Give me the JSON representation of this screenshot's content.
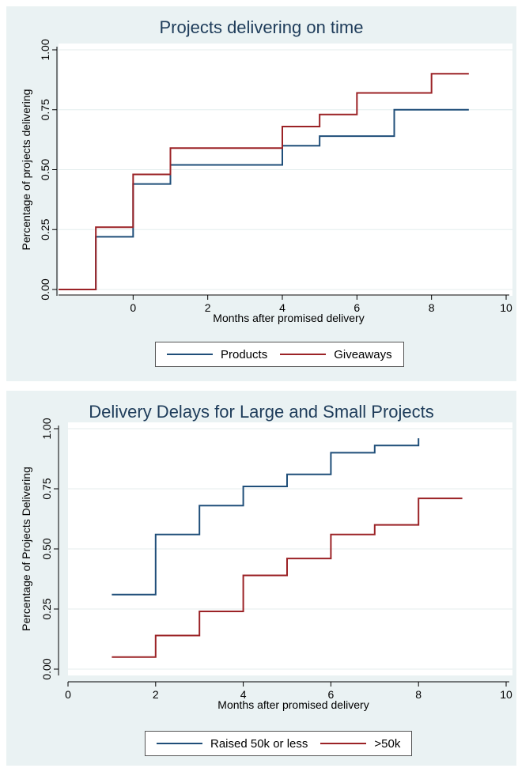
{
  "chart_data": [
    {
      "type": "line",
      "title": "Projects delivering on time",
      "xlabel": "Months after promised delivery",
      "ylabel": "Percentage of projects delivering",
      "xlim": [
        -2,
        10
      ],
      "ylim": [
        0,
        1
      ],
      "xticks": [
        0,
        2,
        4,
        6,
        8,
        10
      ],
      "yticks": [
        "0.00",
        "0.25",
        "0.50",
        "0.75",
        "1.00"
      ],
      "legend": "bottom",
      "series": [
        {
          "name": "Products",
          "color": "#1f4e79",
          "x": [
            -2,
            -1,
            0,
            1,
            4,
            5,
            7,
            9
          ],
          "y": [
            0,
            0.22,
            0.44,
            0.52,
            0.6,
            0.64,
            0.75,
            0.75
          ]
        },
        {
          "name": "Giveaways",
          "color": "#9b2226",
          "x": [
            -2,
            -1,
            0,
            1,
            4,
            5,
            6,
            8,
            9
          ],
          "y": [
            0,
            0.26,
            0.48,
            0.59,
            0.68,
            0.73,
            0.82,
            0.9,
            0.9
          ]
        }
      ]
    },
    {
      "type": "line",
      "title": "Delivery Delays for Large and Small Projects",
      "xlabel": "Months after promised delivery",
      "ylabel": "Percentage of Projects Delivering",
      "xlim": [
        0,
        10
      ],
      "ylim": [
        0,
        1
      ],
      "xticks": [
        0,
        2,
        4,
        6,
        8,
        10
      ],
      "yticks": [
        "0.00",
        "0.25",
        "0.50",
        "0.75",
        "1.00"
      ],
      "legend": "bottom",
      "series": [
        {
          "name": "Raised 50k or less",
          "color": "#1f4e79",
          "x": [
            1,
            2,
            3,
            4,
            5,
            6,
            7,
            8
          ],
          "y": [
            0.31,
            0.56,
            0.68,
            0.76,
            0.81,
            0.9,
            0.93,
            0.96
          ]
        },
        {
          "name": ">50k",
          "color": "#9b2226",
          "x": [
            1,
            2,
            3,
            4,
            5,
            6,
            7,
            8,
            9
          ],
          "y": [
            0.05,
            0.14,
            0.24,
            0.39,
            0.46,
            0.56,
            0.6,
            0.71,
            0.71
          ]
        }
      ]
    }
  ]
}
